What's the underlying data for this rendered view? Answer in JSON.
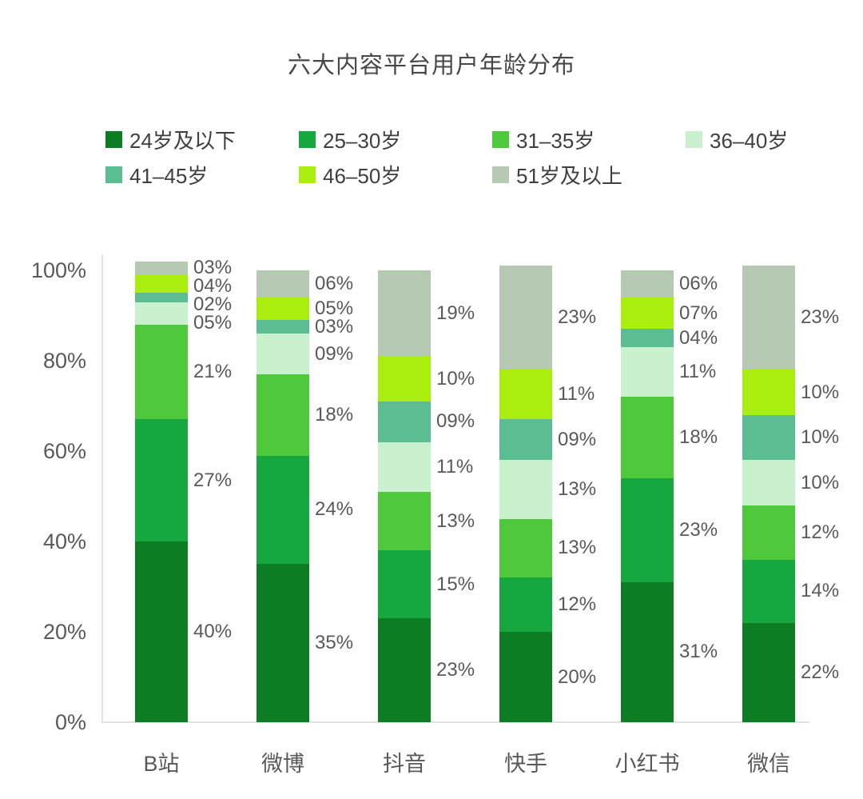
{
  "title": "六大内容平台用户年龄分布",
  "chart_data": {
    "type": "stacked-bar",
    "title": "六大内容平台用户年龄分布",
    "categories": [
      "B站",
      "微博",
      "抖音",
      "快手",
      "小红书",
      "微信"
    ],
    "series": [
      {
        "name": "24岁及以下",
        "color": "#0c7d23",
        "values": [
          40,
          35,
          23,
          20,
          31,
          22
        ],
        "formatted_labels": [
          "40%",
          "35%",
          "23%",
          "20%",
          "31%",
          "22%"
        ]
      },
      {
        "name": "25–30岁",
        "color": "#16a83f",
        "values": [
          27,
          24,
          15,
          12,
          23,
          14
        ],
        "formatted_labels": [
          "27%",
          "24%",
          "15%",
          "12%",
          "23%",
          "14%"
        ]
      },
      {
        "name": "31–35岁",
        "color": "#4fc93c",
        "values": [
          21,
          18,
          13,
          13,
          18,
          12
        ],
        "formatted_labels": [
          "21%",
          "18%",
          "13%",
          "13%",
          "18%",
          "12%"
        ]
      },
      {
        "name": "36–40岁",
        "color": "#c9f1cd",
        "values": [
          5,
          9,
          11,
          13,
          11,
          10
        ],
        "formatted_labels": [
          "05%",
          "09%",
          "11%",
          "13%",
          "11%",
          "10%"
        ]
      },
      {
        "name": "41–45岁",
        "color": "#5bbd92",
        "values": [
          2,
          3,
          9,
          9,
          4,
          10
        ],
        "formatted_labels": [
          "02%",
          "03%",
          "09%",
          "09%",
          "04%",
          "10%"
        ]
      },
      {
        "name": "46–50岁",
        "color": "#a9ee0e",
        "values": [
          4,
          5,
          10,
          11,
          7,
          10
        ],
        "formatted_labels": [
          "04%",
          "05%",
          "10%",
          "11%",
          "07%",
          "10%"
        ]
      },
      {
        "name": "51岁及以上",
        "color": "#b5c9b3",
        "values": [
          3,
          6,
          19,
          23,
          6,
          23
        ],
        "formatted_labels": [
          "03%",
          "06%",
          "19%",
          "23%",
          "06%",
          "23%"
        ]
      }
    ],
    "y_ticks": [
      "0%",
      "20%",
      "40%",
      "60%",
      "80%",
      "100%"
    ],
    "ylim": [
      0,
      100
    ],
    "grid": false,
    "legend_position": "top",
    "label_format": "leading-zero two-digit percent beside each segment",
    "text_color": "#595959",
    "axis_color": "#e2e2e2"
  }
}
